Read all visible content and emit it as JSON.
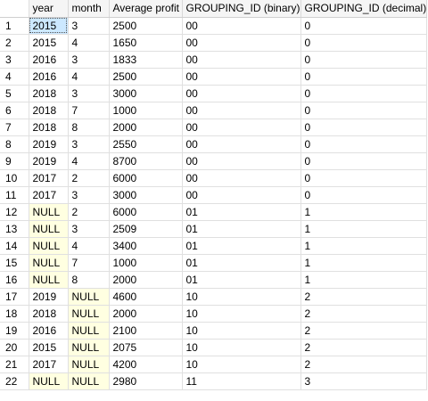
{
  "grid": {
    "columns": [
      "year",
      "month",
      "Average profit",
      "GROUPING_ID (binary)",
      "GROUPING_ID (decimal)"
    ],
    "null_text": "NULL",
    "colors": {
      "null_highlight": "#ffffe1",
      "selected_cell": "#cce8ff",
      "header_background": "#f5f5f5"
    },
    "selected": {
      "row": 1,
      "column": "year"
    },
    "rows": [
      {
        "num": "1",
        "year": "2015",
        "month": "3",
        "avg": "2500",
        "gid_bin": "00",
        "gid_dec": "0"
      },
      {
        "num": "2",
        "year": "2015",
        "month": "4",
        "avg": "1650",
        "gid_bin": "00",
        "gid_dec": "0"
      },
      {
        "num": "3",
        "year": "2016",
        "month": "3",
        "avg": "1833",
        "gid_bin": "00",
        "gid_dec": "0"
      },
      {
        "num": "4",
        "year": "2016",
        "month": "4",
        "avg": "2500",
        "gid_bin": "00",
        "gid_dec": "0"
      },
      {
        "num": "5",
        "year": "2018",
        "month": "3",
        "avg": "3000",
        "gid_bin": "00",
        "gid_dec": "0"
      },
      {
        "num": "6",
        "year": "2018",
        "month": "7",
        "avg": "1000",
        "gid_bin": "00",
        "gid_dec": "0"
      },
      {
        "num": "7",
        "year": "2018",
        "month": "8",
        "avg": "2000",
        "gid_bin": "00",
        "gid_dec": "0"
      },
      {
        "num": "8",
        "year": "2019",
        "month": "3",
        "avg": "2550",
        "gid_bin": "00",
        "gid_dec": "0"
      },
      {
        "num": "9",
        "year": "2019",
        "month": "4",
        "avg": "8700",
        "gid_bin": "00",
        "gid_dec": "0"
      },
      {
        "num": "10",
        "year": "2017",
        "month": "2",
        "avg": "6000",
        "gid_bin": "00",
        "gid_dec": "0"
      },
      {
        "num": "11",
        "year": "2017",
        "month": "3",
        "avg": "3000",
        "gid_bin": "00",
        "gid_dec": "0"
      },
      {
        "num": "12",
        "year": "NULL",
        "month": "2",
        "avg": "6000",
        "gid_bin": "01",
        "gid_dec": "1"
      },
      {
        "num": "13",
        "year": "NULL",
        "month": "3",
        "avg": "2509",
        "gid_bin": "01",
        "gid_dec": "1"
      },
      {
        "num": "14",
        "year": "NULL",
        "month": "4",
        "avg": "3400",
        "gid_bin": "01",
        "gid_dec": "1"
      },
      {
        "num": "15",
        "year": "NULL",
        "month": "7",
        "avg": "1000",
        "gid_bin": "01",
        "gid_dec": "1"
      },
      {
        "num": "16",
        "year": "NULL",
        "month": "8",
        "avg": "2000",
        "gid_bin": "01",
        "gid_dec": "1"
      },
      {
        "num": "17",
        "year": "2019",
        "month": "NULL",
        "avg": "4600",
        "gid_bin": "10",
        "gid_dec": "2"
      },
      {
        "num": "18",
        "year": "2018",
        "month": "NULL",
        "avg": "2000",
        "gid_bin": "10",
        "gid_dec": "2"
      },
      {
        "num": "19",
        "year": "2016",
        "month": "NULL",
        "avg": "2100",
        "gid_bin": "10",
        "gid_dec": "2"
      },
      {
        "num": "20",
        "year": "2015",
        "month": "NULL",
        "avg": "2075",
        "gid_bin": "10",
        "gid_dec": "2"
      },
      {
        "num": "21",
        "year": "2017",
        "month": "NULL",
        "avg": "4200",
        "gid_bin": "10",
        "gid_dec": "2"
      },
      {
        "num": "22",
        "year": "NULL",
        "month": "NULL",
        "avg": "2980",
        "gid_bin": "11",
        "gid_dec": "3"
      }
    ]
  }
}
